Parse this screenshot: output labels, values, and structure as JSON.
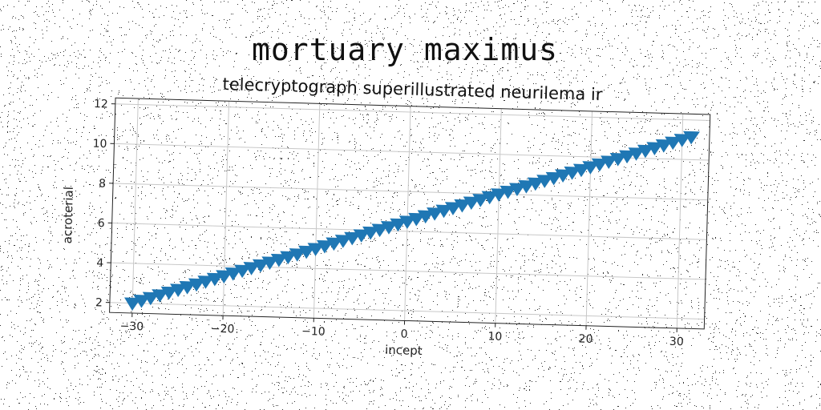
{
  "figure": {
    "suptitle": "mortuary maximus"
  },
  "chart_data": {
    "type": "scatter",
    "title": "telecryptograph superillustrated neurilema ir",
    "xlabel": "incept",
    "ylabel": "acroterial",
    "xlim": [
      -32.5,
      33
    ],
    "ylim": [
      1.5,
      12.3
    ],
    "xticks": [
      -30,
      -20,
      -10,
      0,
      10,
      20,
      30
    ],
    "xtick_labels": [
      "−30",
      "−20",
      "−10",
      "0",
      "10",
      "20",
      "30"
    ],
    "yticks": [
      2,
      4,
      6,
      8,
      10,
      12
    ],
    "ytick_labels": [
      "2",
      "4",
      "6",
      "8",
      "10",
      "12"
    ],
    "grid": true,
    "marker": "triangle-down",
    "color": "#1f77b4",
    "x": [
      -30,
      -29,
      -28,
      -27,
      -26,
      -25,
      -24,
      -23,
      -22,
      -21,
      -20,
      -19,
      -18,
      -17,
      -16,
      -15,
      -14,
      -13,
      -12,
      -11,
      -10,
      -9,
      -8,
      -7,
      -6,
      -5,
      -4,
      -3,
      -2,
      -1,
      0,
      1,
      2,
      3,
      4,
      5,
      6,
      7,
      8,
      9,
      10,
      11,
      12,
      13,
      14,
      15,
      16,
      17,
      18,
      19,
      20,
      21,
      22,
      23,
      24,
      25,
      26,
      27,
      28,
      29,
      30,
      31
    ],
    "y": [
      2.0,
      2.15,
      2.3,
      2.45,
      2.6,
      2.75,
      2.9,
      3.05,
      3.2,
      3.35,
      3.5,
      3.65,
      3.8,
      3.95,
      4.1,
      4.25,
      4.4,
      4.55,
      4.7,
      4.85,
      5.0,
      5.15,
      5.3,
      5.45,
      5.6,
      5.75,
      5.9,
      6.05,
      6.2,
      6.35,
      6.5,
      6.65,
      6.8,
      6.95,
      7.1,
      7.25,
      7.4,
      7.55,
      7.7,
      7.85,
      8.0,
      8.15,
      8.3,
      8.45,
      8.6,
      8.75,
      8.9,
      9.05,
      9.2,
      9.35,
      9.5,
      9.65,
      9.8,
      9.95,
      10.1,
      10.25,
      10.4,
      10.55,
      10.7,
      10.85,
      11.0,
      11.15
    ]
  }
}
